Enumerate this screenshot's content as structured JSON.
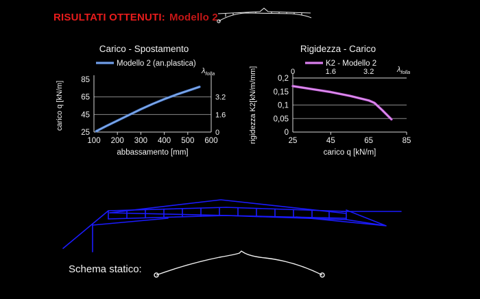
{
  "slide": {
    "background": "#000000",
    "title": "RISULTATI OTTENUTI:",
    "title_model": "Modello 2",
    "title_color": "#e81c1c",
    "title_model_color": "#c41616",
    "schema_label": "Schema statico:",
    "diagram_color": "#1b1bff",
    "schema_color": "#ffffff",
    "grid_color": "#8a8a8a",
    "axis_color": "#d9d9d9"
  },
  "chart_data": [
    {
      "type": "line",
      "title": "Carico - Spostamento",
      "xlabel": "abbassamento [mm]",
      "ylabel": "carico q [kN/m]",
      "xlim": [
        100,
        600
      ],
      "ylim": [
        25,
        85
      ],
      "xticks": [
        {
          "v": 100,
          "label": "100"
        },
        {
          "v": 200,
          "label": "200"
        },
        {
          "v": 300,
          "label": "300"
        },
        {
          "v": 400,
          "label": "400"
        },
        {
          "v": 500,
          "label": "500"
        },
        {
          "v": 600,
          "label": "600"
        }
      ],
      "xtick_marks": [
        200,
        300,
        400,
        500
      ],
      "yticks": [
        {
          "v": 25,
          "label": "25"
        },
        {
          "v": 45,
          "label": "45"
        },
        {
          "v": 65,
          "label": "65"
        },
        {
          "v": 85,
          "label": "85"
        }
      ],
      "gridlines_y": [
        45,
        65
      ],
      "legend_position": "top",
      "secondary_axis": {
        "side": "right",
        "label": "λ",
        "sub": "folla",
        "ticks": [
          {
            "v": 25,
            "label": "0"
          },
          {
            "v": 45,
            "label": "1.6"
          },
          {
            "v": 65,
            "label": "3.2"
          }
        ]
      },
      "series": [
        {
          "name": "Modello 2 (an.plastica)",
          "color": "#4f7fd0",
          "highlight": "#8ab2ec",
          "points": [
            [
              110,
              26
            ],
            [
              150,
              31.5
            ],
            [
              200,
              38
            ],
            [
              250,
              44.5
            ],
            [
              300,
              51
            ],
            [
              350,
              57
            ],
            [
              400,
              62.5
            ],
            [
              450,
              67.5
            ],
            [
              500,
              72
            ],
            [
              550,
              76.5
            ]
          ]
        }
      ]
    },
    {
      "type": "line",
      "title": "Rigidezza - Carico",
      "xlabel": "carico q [kN/m]",
      "ylabel": "rigidezza K2[kN/m/mm]",
      "xlim": [
        25,
        85
      ],
      "ylim": [
        0,
        0.2
      ],
      "xticks": [
        {
          "v": 25,
          "label": "25"
        },
        {
          "v": 45,
          "label": "45"
        },
        {
          "v": 65,
          "label": "65"
        },
        {
          "v": 85,
          "label": "85"
        }
      ],
      "xtick_marks": [
        45,
        85
      ],
      "yticks": [
        {
          "v": 0,
          "label": "0"
        },
        {
          "v": 0.05,
          "label": "0,05"
        },
        {
          "v": 0.1,
          "label": "0,1"
        },
        {
          "v": 0.15,
          "label": "0,15"
        },
        {
          "v": 0.2,
          "label": "0,2"
        }
      ],
      "gridlines_y": [
        0.05,
        0.1
      ],
      "legend_position": "top",
      "secondary_axis": {
        "side": "top",
        "label": "λ",
        "sub": "folla",
        "ticks": [
          {
            "v": 25,
            "label": "0"
          },
          {
            "v": 45,
            "label": "1.6"
          },
          {
            "v": 65,
            "label": "3.2"
          }
        ]
      },
      "series": [
        {
          "name": "K2 - Modello 2",
          "color": "#c05fd6",
          "highlight": "#e39af2",
          "points": [
            [
              25,
              0.17
            ],
            [
              35,
              0.159
            ],
            [
              45,
              0.148
            ],
            [
              55,
              0.134
            ],
            [
              65,
              0.117
            ],
            [
              68,
              0.108
            ],
            [
              72,
              0.082
            ],
            [
              77,
              0.047
            ]
          ]
        }
      ]
    }
  ]
}
